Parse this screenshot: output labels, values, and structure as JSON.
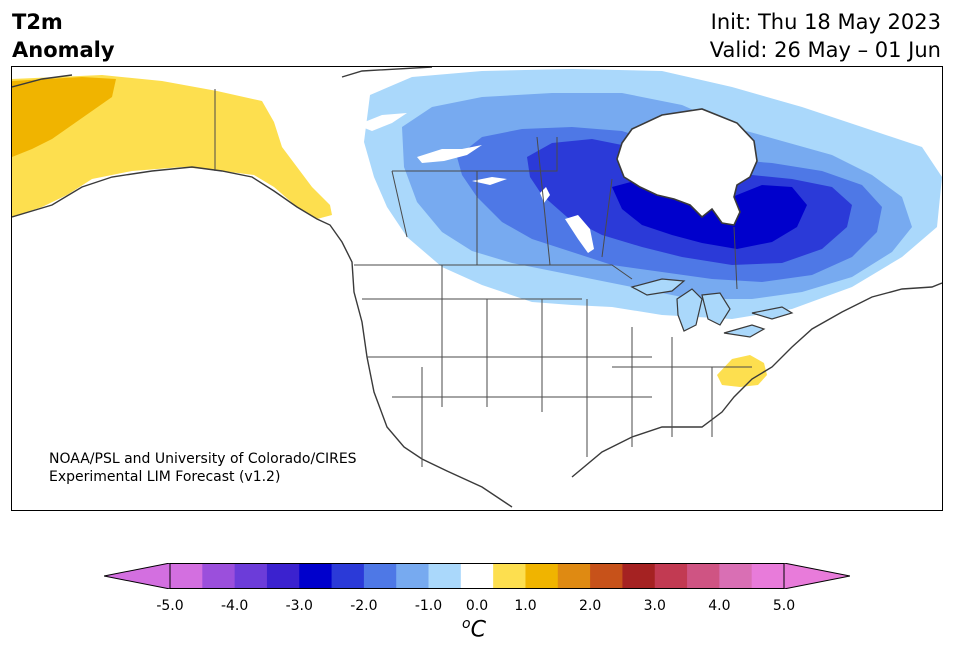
{
  "header": {
    "variable": "T2m",
    "quantity": "Anomaly",
    "init": "Init: Thu 18 May 2023",
    "valid": "Valid: 26 May – 01 Jun"
  },
  "credit": {
    "line1": "NOAA/PSL and University of Colorado/CIRES",
    "line2": "Experimental LIM Forecast (v1.2)"
  },
  "colorbar": {
    "unit_base": "C",
    "unit_sup": "o",
    "levels": [
      -5.0,
      -4.5,
      -4.0,
      -3.5,
      -3.0,
      -2.5,
      -2.0,
      -1.5,
      -1.0,
      -0.5,
      0.5,
      1.0,
      1.5,
      2.0,
      2.5,
      3.0,
      3.5,
      4.0,
      4.5,
      5.0
    ],
    "colors": [
      "#d36fe0",
      "#9b4fdc",
      "#6c3cd9",
      "#3b22cf",
      "#0000cc",
      "#2b3ad8",
      "#4e78e6",
      "#77aaf0",
      "#aad8fb",
      "#ffffff",
      "#fddf4f",
      "#f0b400",
      "#df8a12",
      "#c7521a",
      "#a52222",
      "#c23a52",
      "#cf5483",
      "#d96fb4",
      "#e87bda"
    ],
    "under_color": "#d36fe0",
    "over_color": "#e87bda",
    "tick_labels": [
      "-5.0",
      "-4.0",
      "-3.0",
      "-2.0",
      "-1.0",
      "0.0",
      "1.0",
      "2.0",
      "3.0",
      "4.0",
      "5.0"
    ]
  },
  "map": {
    "colors": {
      "land": "#fdfdf9",
      "warm_1": "#fddf4f",
      "warm_2": "#f0b400",
      "cold_1": "#aad8fb",
      "cold_2": "#77aaf0",
      "cold_3": "#4e78e6",
      "cold_4": "#2b3ad8",
      "cold_5": "#0000cc",
      "coast": "#3a3a3a"
    }
  }
}
